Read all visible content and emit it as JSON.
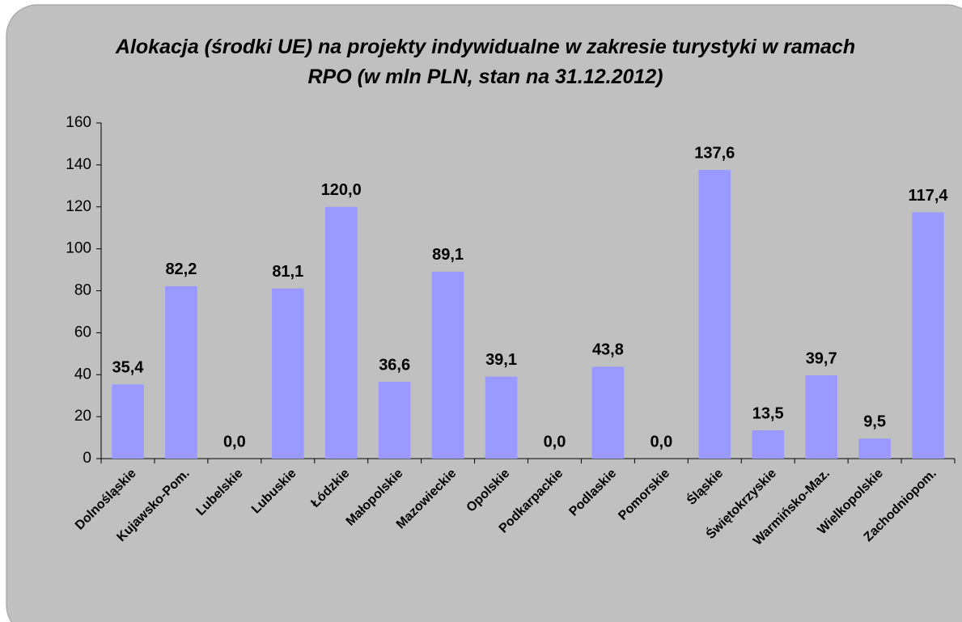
{
  "chart_data": {
    "type": "bar",
    "title": "Alokacja (środki UE) na projekty indywidualne w zakresie turystyki w ramach RPO (w mln PLN, stan na 31.12.2012)",
    "categories": [
      "Dolnośląskie",
      "Kujawsko-Pom.",
      "Lubelskie",
      "Lubuskie",
      "Łódzkie",
      "Małopolskie",
      "Mazowieckie",
      "Opolskie",
      "Podkarpackie",
      "Podlaskie",
      "Pomorskie",
      "Śląskie",
      "Świętokrzyskie",
      "Warmińsko-Maz.",
      "Wielkopolskie",
      "Zachodniopom."
    ],
    "values": [
      35.4,
      82.2,
      0.0,
      81.1,
      120.0,
      36.6,
      89.1,
      39.1,
      0.0,
      43.8,
      0.0,
      137.6,
      13.5,
      39.7,
      9.5,
      117.4
    ],
    "value_labels": [
      "35,4",
      "82,2",
      "0,0",
      "81,1",
      "120,0",
      "36,6",
      "89,1",
      "39,1",
      "0,0",
      "43,8",
      "0,0",
      "137,6",
      "13,5",
      "39,7",
      "9,5",
      "117,4"
    ],
    "color": "#9999ff",
    "ylim": [
      0,
      160
    ],
    "yticks": [
      0,
      20,
      40,
      60,
      80,
      100,
      120,
      140,
      160
    ],
    "grid": false
  }
}
